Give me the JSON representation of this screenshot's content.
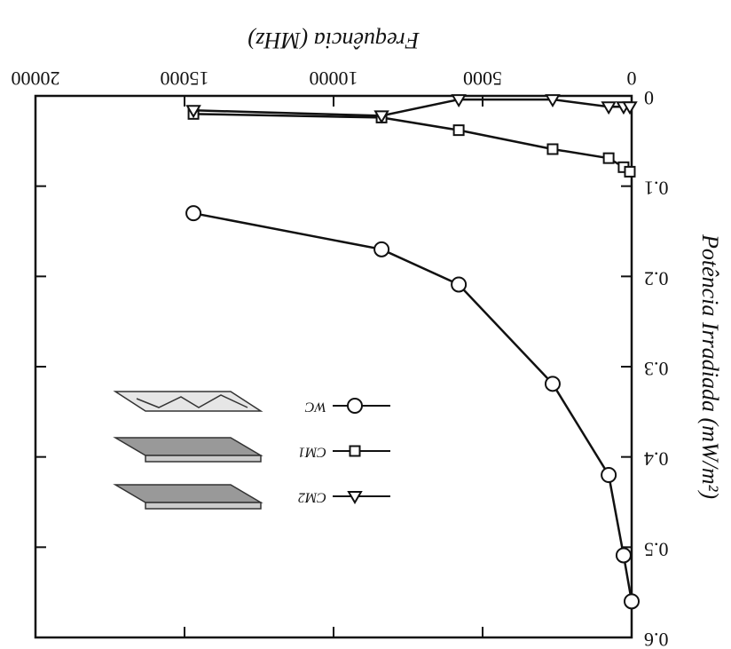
{
  "chart_data": {
    "type": "line",
    "x_label": "Frequência (MHz)",
    "y_label": "Potência Irradiada (mW/m²)",
    "xlim": [
      0,
      20000
    ],
    "xticks": [
      0,
      5000,
      10000,
      15000,
      20000
    ],
    "ylim": [
      0,
      0.6
    ],
    "yticks": [
      0,
      0.1,
      0.2,
      0.3,
      0.4,
      0.5,
      0.6
    ],
    "series": [
      {
        "name": "WC",
        "marker": "circle",
        "color": "#111",
        "x": [
          14700,
          8390,
          5800,
          2650,
          770,
          270,
          0
        ],
        "values": [
          0.13,
          0.17,
          0.209,
          0.319,
          0.42,
          0.509,
          0.56
        ]
      },
      {
        "name": "CM1",
        "marker": "square",
        "color": "#111",
        "x": [
          14700,
          8390,
          5800,
          2650,
          770,
          270,
          60
        ],
        "values": [
          0.02,
          0.024,
          0.038,
          0.059,
          0.069,
          0.079,
          0.084
        ]
      },
      {
        "name": "CM2",
        "marker": "triangle",
        "color": "#111",
        "x": [
          14700,
          8390,
          5800,
          2650,
          770,
          270,
          60
        ],
        "values": [
          0.016,
          0.022,
          0.004,
          0.004,
          0.012,
          0.012,
          0.012
        ]
      }
    ]
  }
}
